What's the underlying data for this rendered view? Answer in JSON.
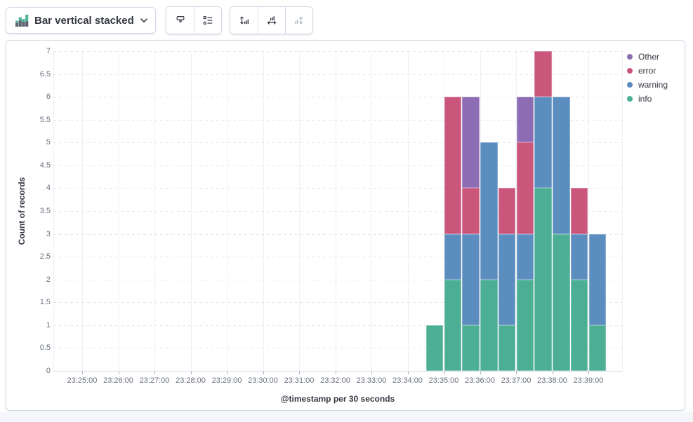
{
  "toolbar": {
    "chart_type_label": "Bar vertical stacked",
    "chart_type_icon": "stacked-bar-chart-icon",
    "group1_icons": [
      "brush-icon",
      "legend-list-icon"
    ],
    "group2_icons": [
      "fit-y-axis-icon",
      "fit-x-axis-icon",
      "reset-axes-icon"
    ],
    "reset_axes_disabled": true
  },
  "colors": {
    "info": "#4cae93",
    "warning": "#5b8dbe",
    "error": "#ca567c",
    "other": "#8c6cb3",
    "icon_green": "#54b399",
    "icon_gray": "#5b6370",
    "panel_border": "#d3dae6",
    "tick_text": "#69707d",
    "text_dark": "#343741"
  },
  "chart_data": {
    "type": "bar",
    "stacked": true,
    "orientation": "vertical",
    "title": "",
    "xlabel": "@timestamp per 30 seconds",
    "ylabel": "Count of records",
    "ylim": [
      0,
      7
    ],
    "y_ticks": [
      "0",
      "0.5",
      "1",
      "1.5",
      "2",
      "2.5",
      "3",
      "3.5",
      "4",
      "4.5",
      "5",
      "5.5",
      "6",
      "6.5",
      "7"
    ],
    "x_ticks": [
      "23:25:00",
      "23:26:00",
      "23:27:00",
      "23:28:00",
      "23:29:00",
      "23:30:00",
      "23:31:00",
      "23:32:00",
      "23:33:00",
      "23:34:00",
      "23:35:00",
      "23:36:00",
      "23:37:00",
      "23:38:00",
      "23:39:00"
    ],
    "categories": [
      "23:34:30",
      "23:35:00",
      "23:35:30",
      "23:36:00",
      "23:36:30",
      "23:37:00",
      "23:37:30",
      "23:38:00",
      "23:38:30",
      "23:39:00"
    ],
    "series": [
      {
        "name": "info",
        "color": "#4cae93",
        "values": [
          1,
          2,
          1,
          2,
          1,
          2,
          4,
          3,
          2,
          1
        ]
      },
      {
        "name": "warning",
        "color": "#5b8dbe",
        "values": [
          0,
          1,
          2,
          3,
          2,
          1,
          2,
          3,
          1,
          2
        ]
      },
      {
        "name": "error",
        "color": "#ca567c",
        "values": [
          0,
          3,
          1,
          0,
          1,
          2,
          1,
          0,
          1,
          0
        ]
      },
      {
        "name": "Other",
        "color": "#8c6cb3",
        "values": [
          0,
          0,
          2,
          0,
          0,
          1,
          0,
          0,
          0,
          0
        ]
      }
    ],
    "grid": {
      "horizontal": "dashed",
      "vertical": "solid"
    },
    "legend": {
      "position": "right",
      "items": [
        {
          "label": "Other",
          "color": "#8c6cb3"
        },
        {
          "label": "error",
          "color": "#ca567c"
        },
        {
          "label": "warning",
          "color": "#5b8dbe"
        },
        {
          "label": "info",
          "color": "#4cae93"
        }
      ]
    }
  }
}
